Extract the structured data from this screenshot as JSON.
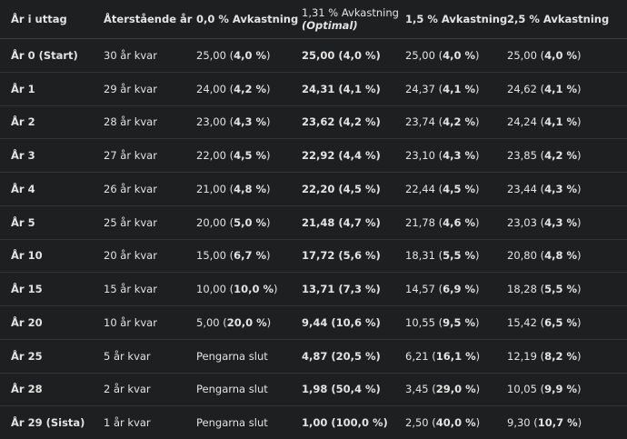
{
  "table": {
    "header": [
      "År i uttag",
      "Återstående år",
      "0,0 % Avkastning",
      "1,31 % Avkastning",
      "1,5 % Avkastning",
      "2,5 % Avkastning"
    ],
    "optimal_note": "(Optimal)",
    "rows": [
      [
        "År 0 (Start)",
        "30 år kvar",
        "25,00 (4,0 %)",
        "25,00 (4,0 %)",
        "25,00 (4,0 %)",
        "25,00 (4,0 %)"
      ],
      [
        "År 1",
        "29 år kvar",
        "24,00 (4,2 %)",
        "24,31 (4,1 %)",
        "24,37 (4,1 %)",
        "24,62 (4,1 %)"
      ],
      [
        "År 2",
        "28 år kvar",
        "23,00 (4,3 %)",
        "23,62 (4,2 %)",
        "23,74 (4,2 %)",
        "24,24 (4,1 %)"
      ],
      [
        "År 3",
        "27 år kvar",
        "22,00 (4,5 %)",
        "22,92 (4,4 %)",
        "23,10 (4,3 %)",
        "23,85 (4,2 %)"
      ],
      [
        "År 4",
        "26 år kvar",
        "21,00 (4,8 %)",
        "22,20 (4,5 %)",
        "22,44 (4,5 %)",
        "23,44 (4,3 %)"
      ],
      [
        "År 5",
        "25 år kvar",
        "20,00 (5,0 %)",
        "21,48 (4,7 %)",
        "21,78 (4,6 %)",
        "23,03 (4,3 %)"
      ],
      [
        "År 10",
        "20 år kvar",
        "15,00 (6,7 %)",
        "17,72 (5,6 %)",
        "18,31 (5,5 %)",
        "20,80 (4,8 %)"
      ],
      [
        "År 15",
        "15 år kvar",
        "10,00 (10,0 %)",
        "13,71 (7,3 %)",
        "14,57 (6,9 %)",
        "18,28 (5,5 %)"
      ],
      [
        "År 20",
        "10 år kvar",
        "5,00 (20,0 %)",
        "9,44 (10,6 %)",
        "10,55 (9,5 %)",
        "15,42 (6,5 %)"
      ],
      [
        "År 25",
        "5 år kvar",
        "Pengarna slut",
        "4,87 (20,5 %)",
        "6,21 (16,1 %)",
        "12,19 (8,2 %)"
      ],
      [
        "År 28",
        "2 år kvar",
        "Pengarna slut",
        "1,98 (50,4 %)",
        "3,45 (29,0 %)",
        "10,05 (9,9 %)"
      ],
      [
        "År 29 (Sista)",
        "1 år kvar",
        "Pengarna slut",
        "1,00 (100,0 %)",
        "2,50 (40,0 %)",
        "9,30 (10,7 %)"
      ]
    ]
  }
}
